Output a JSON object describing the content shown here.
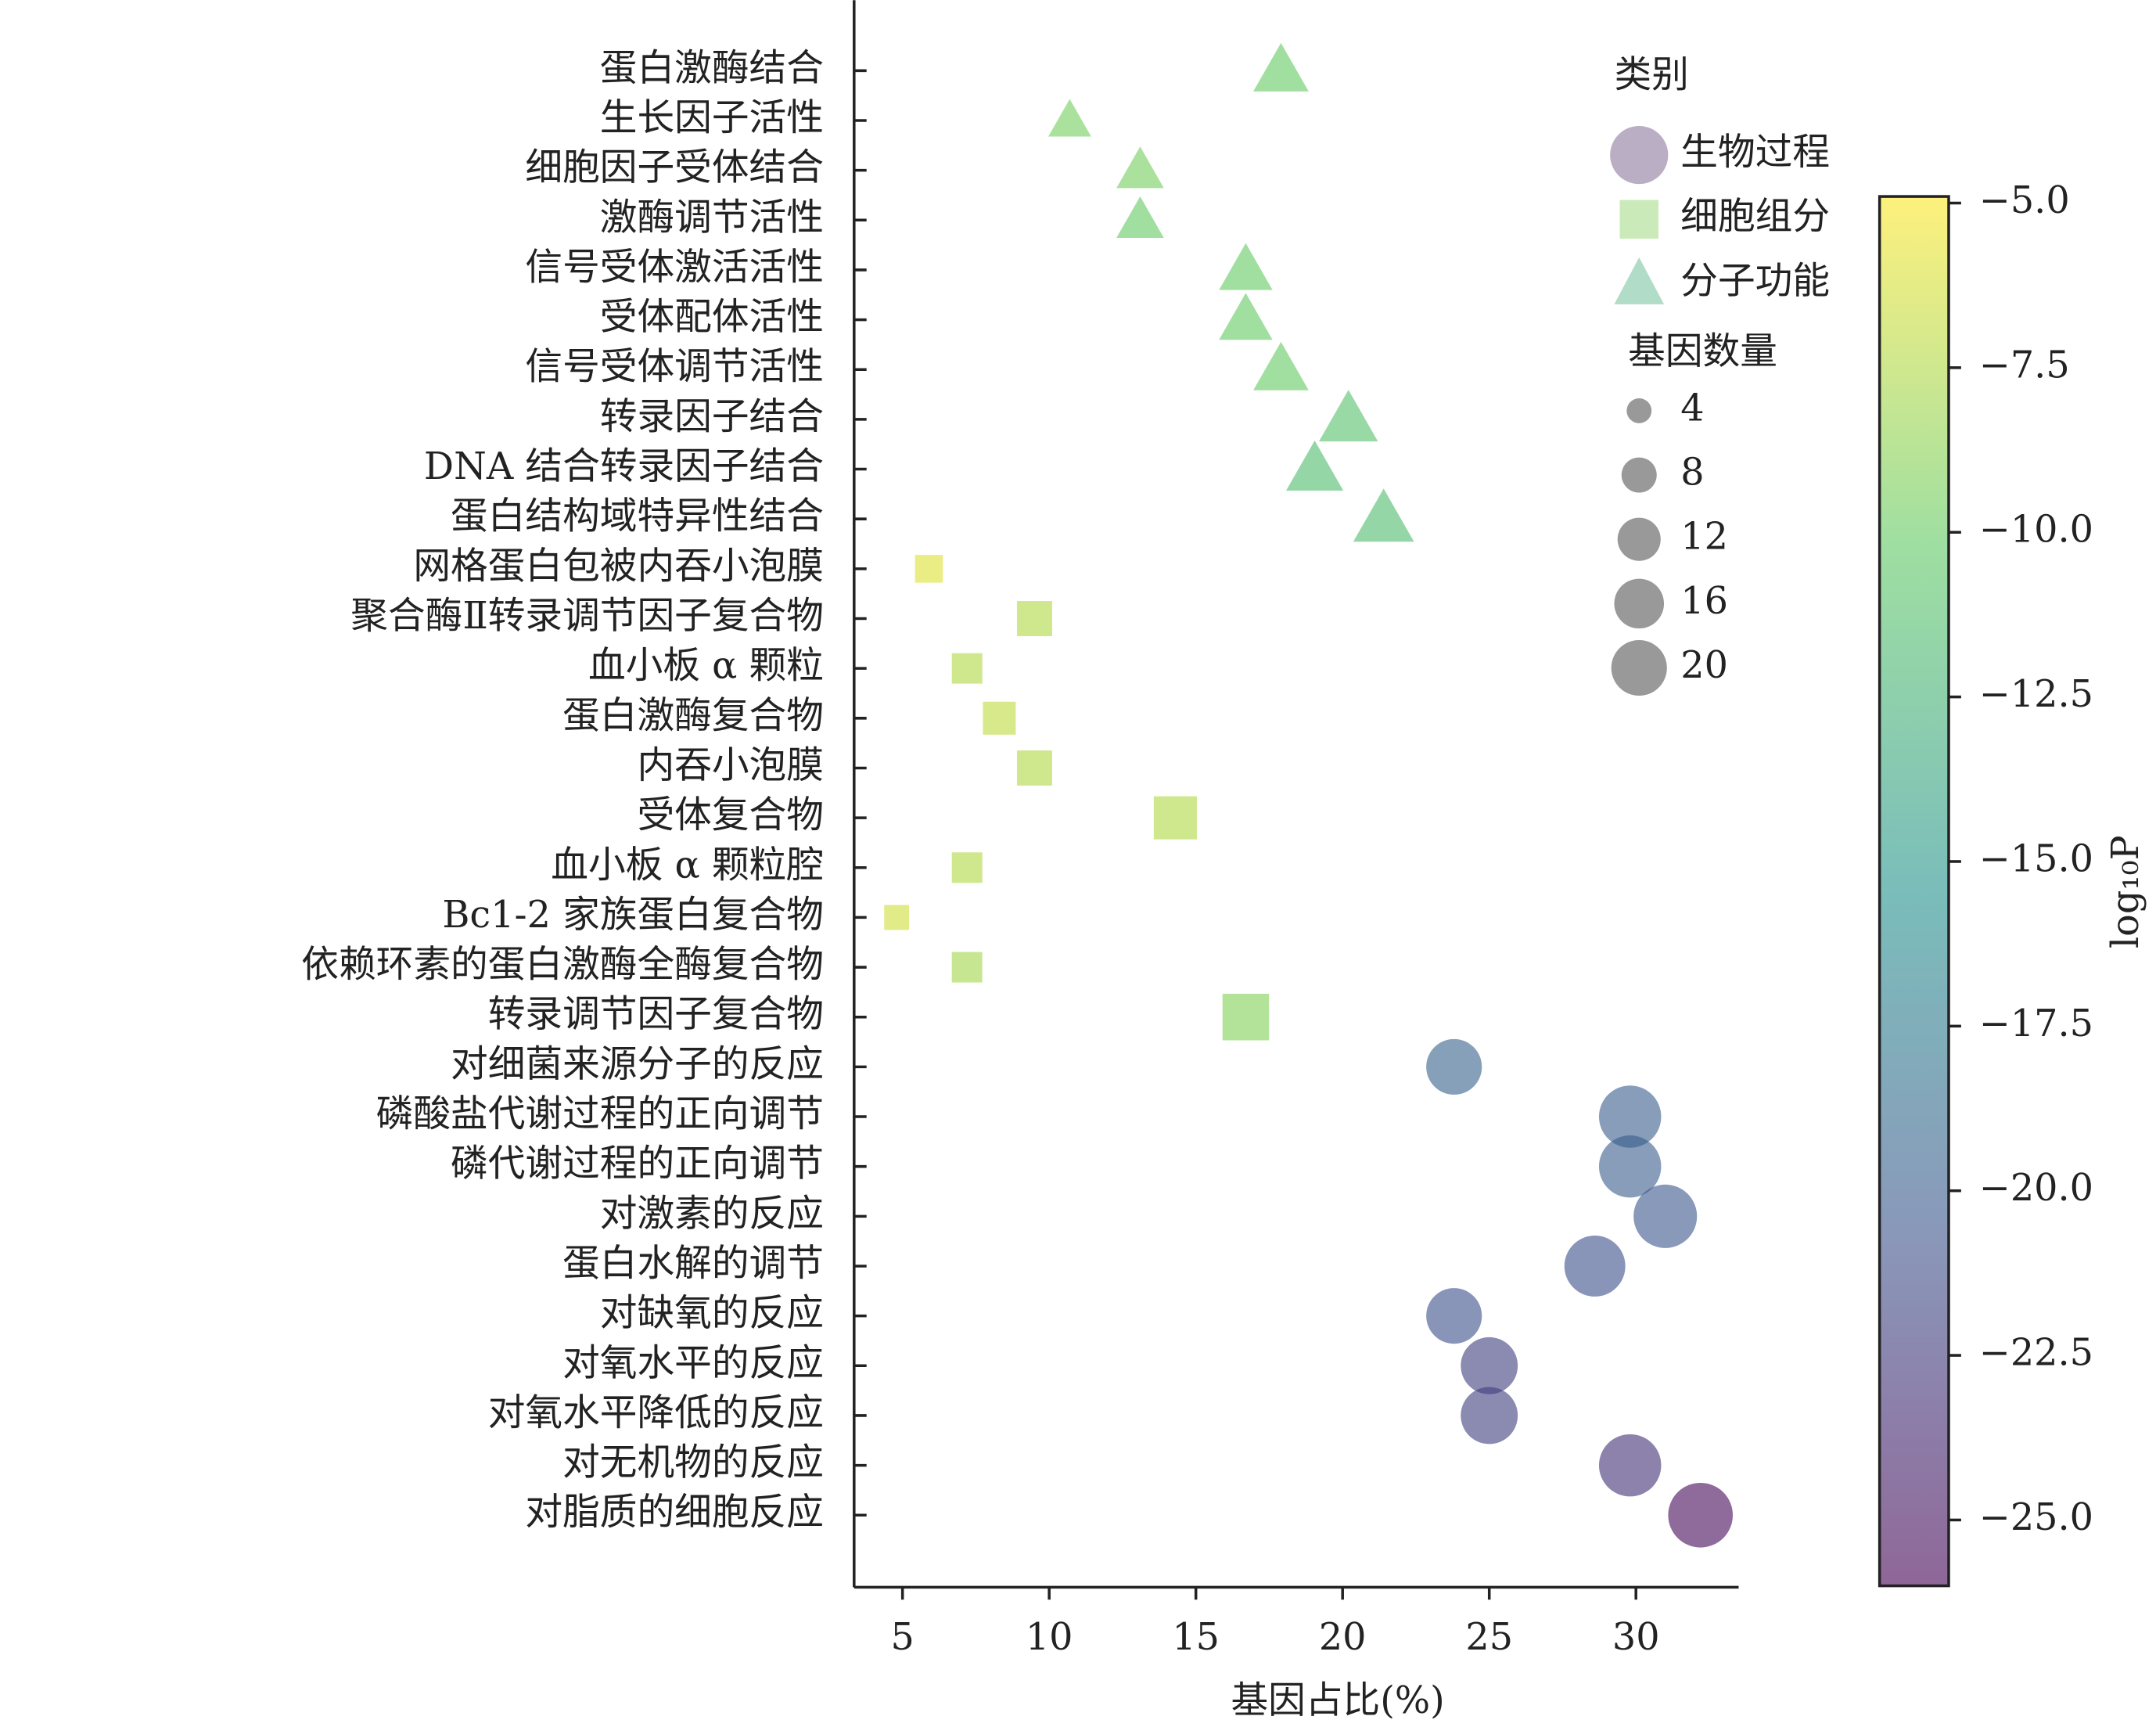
{
  "chart_data": {
    "type": "scatter",
    "x_label": "基因占比(%)",
    "xlim": [
      3.35,
      33.5
    ],
    "xticks": [
      5,
      10,
      15,
      20,
      25,
      30
    ],
    "legend_title": "类别",
    "size_legend_title": "基因数量",
    "size_legend": [
      4,
      8,
      12,
      16,
      20
    ],
    "size_legend_color": "#555555",
    "colorbar_label": "log₁₀P",
    "clim": [
      -26,
      -4.9
    ],
    "colorbar_ticks": [
      {
        "value": -5,
        "label": "−5.0"
      },
      {
        "value": -7.5,
        "label": "−7.5"
      },
      {
        "value": -10,
        "label": "−10.0"
      },
      {
        "value": -12.5,
        "label": "−12.5"
      },
      {
        "value": -15,
        "label": "−15.0"
      },
      {
        "value": -17.5,
        "label": "−17.5"
      },
      {
        "value": -20,
        "label": "−20.0"
      },
      {
        "value": -22.5,
        "label": "−22.5"
      },
      {
        "value": -25,
        "label": "−25.0"
      }
    ],
    "colormap": [
      "#440154",
      "#3b528b",
      "#21918c",
      "#5ec962",
      "#fde725"
    ],
    "alpha": 0.6,
    "series": [
      {
        "name": "生物过程",
        "marker": "circle",
        "color": "#8c789c",
        "categories": [
          "对细菌来源分子的反应",
          "磷酸盐代谢过程的正向调节",
          "磷代谢过程的正向调节",
          "对激素的反应",
          "蛋白水解的调节",
          "对缺氧的反应",
          "对氧水平的反应",
          "对氧水平降低的反应",
          "对无机物的反应",
          "对脂质的细胞反应"
        ],
        "values": [
          23.8,
          29.8,
          29.8,
          31.0,
          28.6,
          23.8,
          25.0,
          25.0,
          29.8,
          32.2
        ],
        "counts": [
          20,
          25,
          25,
          26,
          24,
          20,
          21,
          21,
          25,
          27
        ],
        "log10p": [
          -19.5,
          -20,
          -20,
          -20.5,
          -21,
          -21,
          -22,
          -22,
          -23,
          -25.5
        ]
      },
      {
        "name": "细胞组分",
        "marker": "square",
        "color": "#a8dc8c",
        "categories": [
          "网格蛋白包被内吞小泡膜",
          "聚合酶Ⅱ转录调节因子复合物",
          "血小板 α 颗粒",
          "蛋白激酶复合物",
          "内吞小泡膜",
          "受体复合物",
          "血小板 α 颗粒腔",
          "Bc1-2 家族蛋白复合物",
          "依赖环素的蛋白激酶全酶复合物",
          "转录调节因子复合物"
        ],
        "values": [
          5.9,
          9.5,
          7.2,
          8.3,
          9.5,
          14.3,
          7.2,
          4.8,
          7.2,
          16.7
        ],
        "counts": [
          5,
          8,
          6,
          7,
          8,
          12,
          6,
          4,
          6,
          14
        ],
        "log10p": [
          -6,
          -7.5,
          -7.5,
          -7,
          -7.5,
          -7.5,
          -7.5,
          -6.5,
          -8,
          -9
        ]
      },
      {
        "name": "分子功能",
        "marker": "triangle",
        "color": "#7cc4a4",
        "categories": [
          "蛋白激酶结合",
          "生长因子活性",
          "细胞因子受体结合",
          "激酶调节活性",
          "信号受体激活活性",
          "受体配体活性",
          "信号受体调节活性",
          "转录因子结合",
          "DNA 结合转录因子结合",
          "蛋白结构域特异性结合"
        ],
        "values": [
          17.9,
          10.7,
          13.1,
          13.1,
          16.7,
          16.7,
          17.9,
          20.2,
          19.05,
          21.4
        ],
        "counts": [
          15,
          9,
          11,
          11,
          14,
          14,
          15,
          17,
          16,
          18
        ],
        "log10p": [
          -10,
          -9.5,
          -9.5,
          -10,
          -10,
          -10,
          -10,
          -11,
          -11.5,
          -11.5
        ]
      }
    ]
  }
}
